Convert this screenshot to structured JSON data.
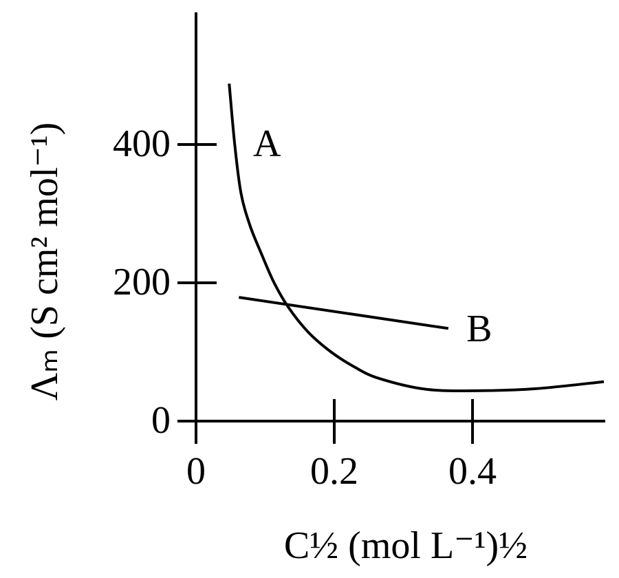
{
  "chart_data": {
    "type": "line",
    "y_label": "Λₘ (S cm² mol⁻¹)",
    "x_label": "C½ (mol L⁻¹)½",
    "xlim": [
      0,
      0.59
    ],
    "ylim": [
      0,
      590
    ],
    "xticks": [
      0,
      0.2,
      0.4
    ],
    "yticks": [
      0,
      200,
      400
    ],
    "series": [
      {
        "name": "A",
        "color": "#000000",
        "x": [
          0.048,
          0.056,
          0.065,
          0.078,
          0.095,
          0.113,
          0.134,
          0.162,
          0.194,
          0.228,
          0.264,
          0.333,
          0.413,
          0.493,
          0.59
        ],
        "values": [
          488,
          400,
          330,
          283,
          241,
          200,
          164,
          129,
          101,
          79,
          62,
          46,
          44,
          47,
          57
        ]
      },
      {
        "name": "B",
        "color": "#000000",
        "x": [
          0.062,
          0.365
        ],
        "values": [
          179,
          134
        ]
      }
    ]
  }
}
